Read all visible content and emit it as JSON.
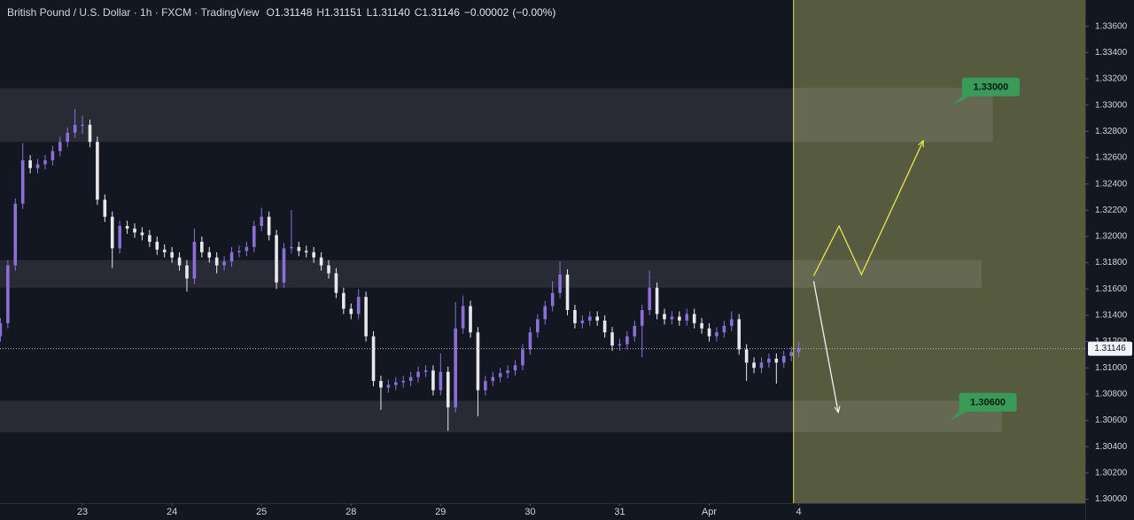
{
  "chart_data": {
    "type": "candlestick",
    "title": "British Pound / U.S. Dollar · 1h · FXCM · TradingView",
    "ohlc": {
      "labels": [
        "O",
        "H",
        "L",
        "C"
      ],
      "values": [
        1.31148,
        1.31151,
        1.3114,
        1.31146
      ],
      "value_labels": [
        "1.31148",
        "1.31151",
        "1.31140",
        "1.31146"
      ]
    },
    "change": {
      "value": -2e-05,
      "label": "−0.00002"
    },
    "change_percent": {
      "value": 0,
      "label": "(−0.00%)"
    },
    "up_color": "#8c6fd6",
    "down_color": "#e8e8ec",
    "open": [
      1.3124,
      1.3134,
      1.3178,
      1.3225,
      1.3258,
      1.3252,
      1.3255,
      1.3258,
      1.3265,
      1.3272,
      1.3279,
      1.3285,
      1.3285,
      1.3272,
      1.3228,
      1.3215,
      1.3191,
      1.3208,
      1.3206,
      1.3203,
      1.3201,
      1.3196,
      1.319,
      1.3188,
      1.3184,
      1.3178,
      1.3168,
      1.3196,
      1.3188,
      1.3184,
      1.3178,
      1.3181,
      1.3188,
      1.3189,
      1.3192,
      1.3208,
      1.3215,
      1.3201,
      1.3165,
      1.3191,
      1.3192,
      1.3189,
      1.3188,
      1.3184,
      1.3178,
      1.3172,
      1.3157,
      1.3145,
      1.3141,
      1.3154,
      1.3124,
      1.309,
      1.3085,
      1.3087,
      1.3089,
      1.309,
      1.3093,
      1.3097,
      1.3098,
      1.3083,
      1.3097,
      1.307,
      1.313,
      1.3147,
      1.3127,
      1.3083,
      1.309,
      1.3093,
      1.3096,
      1.3098,
      1.3102,
      1.3114,
      1.3127,
      1.3137,
      1.3147,
      1.3157,
      1.3171,
      1.3144,
      1.3134,
      1.3136,
      1.3139,
      1.3136,
      1.3127,
      1.3117,
      1.3118,
      1.3124,
      1.3132,
      1.3144,
      1.3161,
      1.3141,
      1.3137,
      1.3139,
      1.3136,
      1.3141,
      1.3134,
      1.313,
      1.3124,
      1.3127,
      1.3132,
      1.3137,
      1.3114,
      1.3104,
      1.31,
      1.3104,
      1.3107,
      1.3104,
      1.3109,
      1.3112
    ],
    "high": [
      1.3138,
      1.3182,
      1.3229,
      1.3271,
      1.3262,
      1.3259,
      1.3262,
      1.3269,
      1.3276,
      1.3283,
      1.3297,
      1.3292,
      1.3289,
      1.3276,
      1.3232,
      1.3219,
      1.3212,
      1.3212,
      1.321,
      1.3207,
      1.3205,
      1.32,
      1.3194,
      1.3192,
      1.3188,
      1.3182,
      1.3206,
      1.32,
      1.3192,
      1.3188,
      1.3185,
      1.3192,
      1.3193,
      1.3196,
      1.3212,
      1.3222,
      1.3219,
      1.3205,
      1.3195,
      1.322,
      1.3196,
      1.3193,
      1.3192,
      1.3188,
      1.3182,
      1.3176,
      1.3161,
      1.3149,
      1.316,
      1.3158,
      1.3128,
      1.3094,
      1.3091,
      1.3093,
      1.3094,
      1.3097,
      1.3101,
      1.3102,
      1.3102,
      1.3111,
      1.3101,
      1.315,
      1.3155,
      1.3151,
      1.3131,
      1.3094,
      1.3097,
      1.31,
      1.3102,
      1.3106,
      1.3118,
      1.3131,
      1.3141,
      1.3151,
      1.3166,
      1.3181,
      1.3175,
      1.3148,
      1.314,
      1.3143,
      1.3143,
      1.314,
      1.3131,
      1.3122,
      1.3128,
      1.3136,
      1.3148,
      1.3174,
      1.3165,
      1.3145,
      1.3143,
      1.3143,
      1.3145,
      1.3145,
      1.3138,
      1.3134,
      1.3131,
      1.3136,
      1.3143,
      1.3141,
      1.3118,
      1.3108,
      1.3108,
      1.3111,
      1.3111,
      1.3113,
      1.3116,
      1.312
    ],
    "low": [
      1.312,
      1.313,
      1.3174,
      1.3221,
      1.3248,
      1.3248,
      1.3251,
      1.3254,
      1.3261,
      1.3268,
      1.3275,
      1.3278,
      1.3268,
      1.3224,
      1.3211,
      1.3176,
      1.3187,
      1.3202,
      1.3199,
      1.3197,
      1.3192,
      1.3186,
      1.3184,
      1.318,
      1.3174,
      1.3158,
      1.3164,
      1.3184,
      1.318,
      1.3172,
      1.3174,
      1.3177,
      1.3184,
      1.3185,
      1.3188,
      1.3204,
      1.3197,
      1.316,
      1.3161,
      1.3187,
      1.3185,
      1.3184,
      1.318,
      1.3174,
      1.3168,
      1.3153,
      1.3141,
      1.3137,
      1.3137,
      1.312,
      1.3086,
      1.3068,
      1.3081,
      1.3083,
      1.3085,
      1.3086,
      1.3089,
      1.3093,
      1.3079,
      1.3079,
      1.3052,
      1.3066,
      1.3126,
      1.3123,
      1.3063,
      1.3079,
      1.3086,
      1.3089,
      1.3092,
      1.3094,
      1.3098,
      1.311,
      1.3123,
      1.3133,
      1.3143,
      1.3153,
      1.314,
      1.313,
      1.313,
      1.3132,
      1.3132,
      1.3123,
      1.3113,
      1.3113,
      1.3114,
      1.312,
      1.3108,
      1.314,
      1.3137,
      1.3133,
      1.3133,
      1.3132,
      1.3132,
      1.313,
      1.3126,
      1.312,
      1.312,
      1.3123,
      1.3128,
      1.311,
      1.309,
      1.3096,
      1.3096,
      1.31,
      1.3088,
      1.31,
      1.3105,
      1.3108
    ],
    "close": [
      1.3134,
      1.3178,
      1.3225,
      1.3258,
      1.3252,
      1.3255,
      1.3258,
      1.3265,
      1.3272,
      1.3279,
      1.3285,
      1.3285,
      1.3272,
      1.3228,
      1.3215,
      1.3191,
      1.3208,
      1.3206,
      1.3203,
      1.3201,
      1.3196,
      1.319,
      1.3188,
      1.3184,
      1.3178,
      1.3168,
      1.3196,
      1.3188,
      1.3184,
      1.3178,
      1.3181,
      1.3188,
      1.3189,
      1.3192,
      1.3208,
      1.3215,
      1.3201,
      1.3165,
      1.3191,
      1.3192,
      1.3189,
      1.3188,
      1.3184,
      1.3178,
      1.3172,
      1.3157,
      1.3145,
      1.3141,
      1.3154,
      1.3124,
      1.309,
      1.3085,
      1.3087,
      1.3089,
      1.309,
      1.3093,
      1.3097,
      1.3098,
      1.3083,
      1.3097,
      1.307,
      1.313,
      1.3147,
      1.3127,
      1.3083,
      1.309,
      1.3093,
      1.3096,
      1.3098,
      1.3102,
      1.3114,
      1.3127,
      1.3137,
      1.3147,
      1.3157,
      1.3171,
      1.3144,
      1.3134,
      1.3136,
      1.3139,
      1.3136,
      1.3127,
      1.3117,
      1.3118,
      1.3124,
      1.3132,
      1.3144,
      1.3161,
      1.3141,
      1.3137,
      1.3139,
      1.3136,
      1.3141,
      1.3134,
      1.313,
      1.3124,
      1.3127,
      1.3132,
      1.3137,
      1.3114,
      1.3104,
      1.31,
      1.3104,
      1.3107,
      1.3104,
      1.3109,
      1.3112,
      1.3115
    ],
    "xlim": [
      -0.05,
      145.4
    ],
    "ylim": [
      1.2997,
      1.338
    ],
    "xticks": [
      {
        "value": 11,
        "label": "23"
      },
      {
        "value": 23,
        "label": "24"
      },
      {
        "value": 35,
        "label": "25"
      },
      {
        "value": 47,
        "label": "28"
      },
      {
        "value": 59,
        "label": "29"
      },
      {
        "value": 71,
        "label": "30"
      },
      {
        "value": 83,
        "label": "31"
      },
      {
        "value": 95,
        "label": "Apr"
      },
      {
        "value": 107,
        "label": "4"
      }
    ],
    "yticks": [
      {
        "value": 1.336,
        "label": "1.33600"
      },
      {
        "value": 1.334,
        "label": "1.33400"
      },
      {
        "value": 1.332,
        "label": "1.33200"
      },
      {
        "value": 1.33,
        "label": "1.33000"
      },
      {
        "value": 1.328,
        "label": "1.32800"
      },
      {
        "value": 1.326,
        "label": "1.32600"
      },
      {
        "value": 1.324,
        "label": "1.32400"
      },
      {
        "value": 1.322,
        "label": "1.32200"
      },
      {
        "value": 1.32,
        "label": "1.32000"
      },
      {
        "value": 1.318,
        "label": "1.31800"
      },
      {
        "value": 1.316,
        "label": "1.31600"
      },
      {
        "value": 1.314,
        "label": "1.31400"
      },
      {
        "value": 1.312,
        "label": "1.31200"
      },
      {
        "value": 1.31,
        "label": "1.31000"
      },
      {
        "value": 1.308,
        "label": "1.30800"
      },
      {
        "value": 1.306,
        "label": "1.30600"
      },
      {
        "value": 1.304,
        "label": "1.30400"
      },
      {
        "value": 1.302,
        "label": "1.30200"
      },
      {
        "value": 1.3,
        "label": "1.30000"
      }
    ],
    "grid": false,
    "last_price": {
      "value": 1.31146,
      "label": "1.31146"
    },
    "projection_start": 106.3,
    "zones": [
      {
        "top": 1.3313,
        "bottom": 1.3272,
        "end": 133
      },
      {
        "top": 1.3182,
        "bottom": 1.3161,
        "end": 131.5
      },
      {
        "top": 1.3075,
        "bottom": 1.3051,
        "end": 134.2
      }
    ],
    "targets": [
      {
        "value": 1.33,
        "label": "1.33000",
        "x": 127.7
      },
      {
        "value": 1.306,
        "label": "1.30600",
        "x": 127.3
      }
    ],
    "arrows": [
      {
        "color": "#e6e34f",
        "x": [
          109,
          112.4,
          115.4,
          123.7
        ],
        "y": [
          1.317,
          1.3208,
          1.3171,
          1.3273
        ]
      },
      {
        "color": "#f0f0f0",
        "x": [
          109,
          112.3
        ],
        "y": [
          1.3166,
          1.3066
        ]
      }
    ]
  }
}
